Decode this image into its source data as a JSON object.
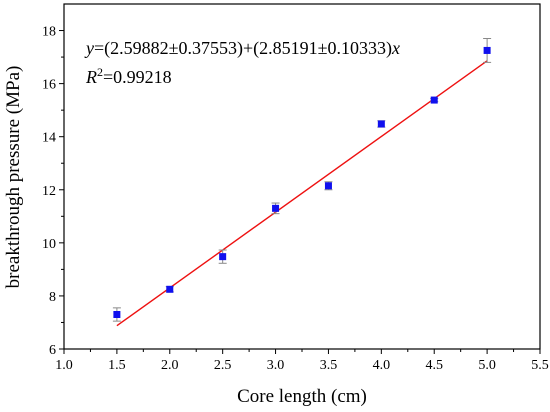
{
  "chart_data": {
    "type": "scatter",
    "title": "",
    "xlabel": "Core length (cm)",
    "ylabel": "breakthrough pressure (MPa)",
    "xlim": [
      1.0,
      5.5
    ],
    "ylim": [
      6,
      19
    ],
    "xticks": [
      "1.0",
      "1.5",
      "2.0",
      "2.5",
      "3.0",
      "3.5",
      "4.0",
      "4.5",
      "5.0",
      "5.5"
    ],
    "yticks": [
      "6",
      "8",
      "10",
      "12",
      "14",
      "16",
      "18"
    ],
    "grid": false,
    "points": [
      {
        "x": 1.5,
        "y": 7.3,
        "err": 0.25
      },
      {
        "x": 2.0,
        "y": 8.25,
        "err": 0.1
      },
      {
        "x": 2.5,
        "y": 9.48,
        "err": 0.25
      },
      {
        "x": 3.0,
        "y": 11.3,
        "err": 0.2
      },
      {
        "x": 3.5,
        "y": 12.15,
        "err": 0.15
      },
      {
        "x": 4.0,
        "y": 14.48,
        "err": 0.12
      },
      {
        "x": 4.5,
        "y": 15.38,
        "err": 0.06
      },
      {
        "x": 5.0,
        "y": 17.25,
        "err": 0.45
      }
    ],
    "fit": {
      "intercept": 2.59882,
      "slope": 2.85191,
      "x_range": [
        1.5,
        5.0
      ],
      "eq_y": "y",
      "eq_body": "=(2.59882±0.37553)+(2.85191±0.10333)",
      "eq_x": "x",
      "r2_label": "R",
      "r2_sup": "2",
      "r2_value": "=0.99218"
    },
    "colors": {
      "points": "#1010ee",
      "fit_line": "#ee1111",
      "error_bars": "#888888",
      "axes": "#000000"
    }
  }
}
